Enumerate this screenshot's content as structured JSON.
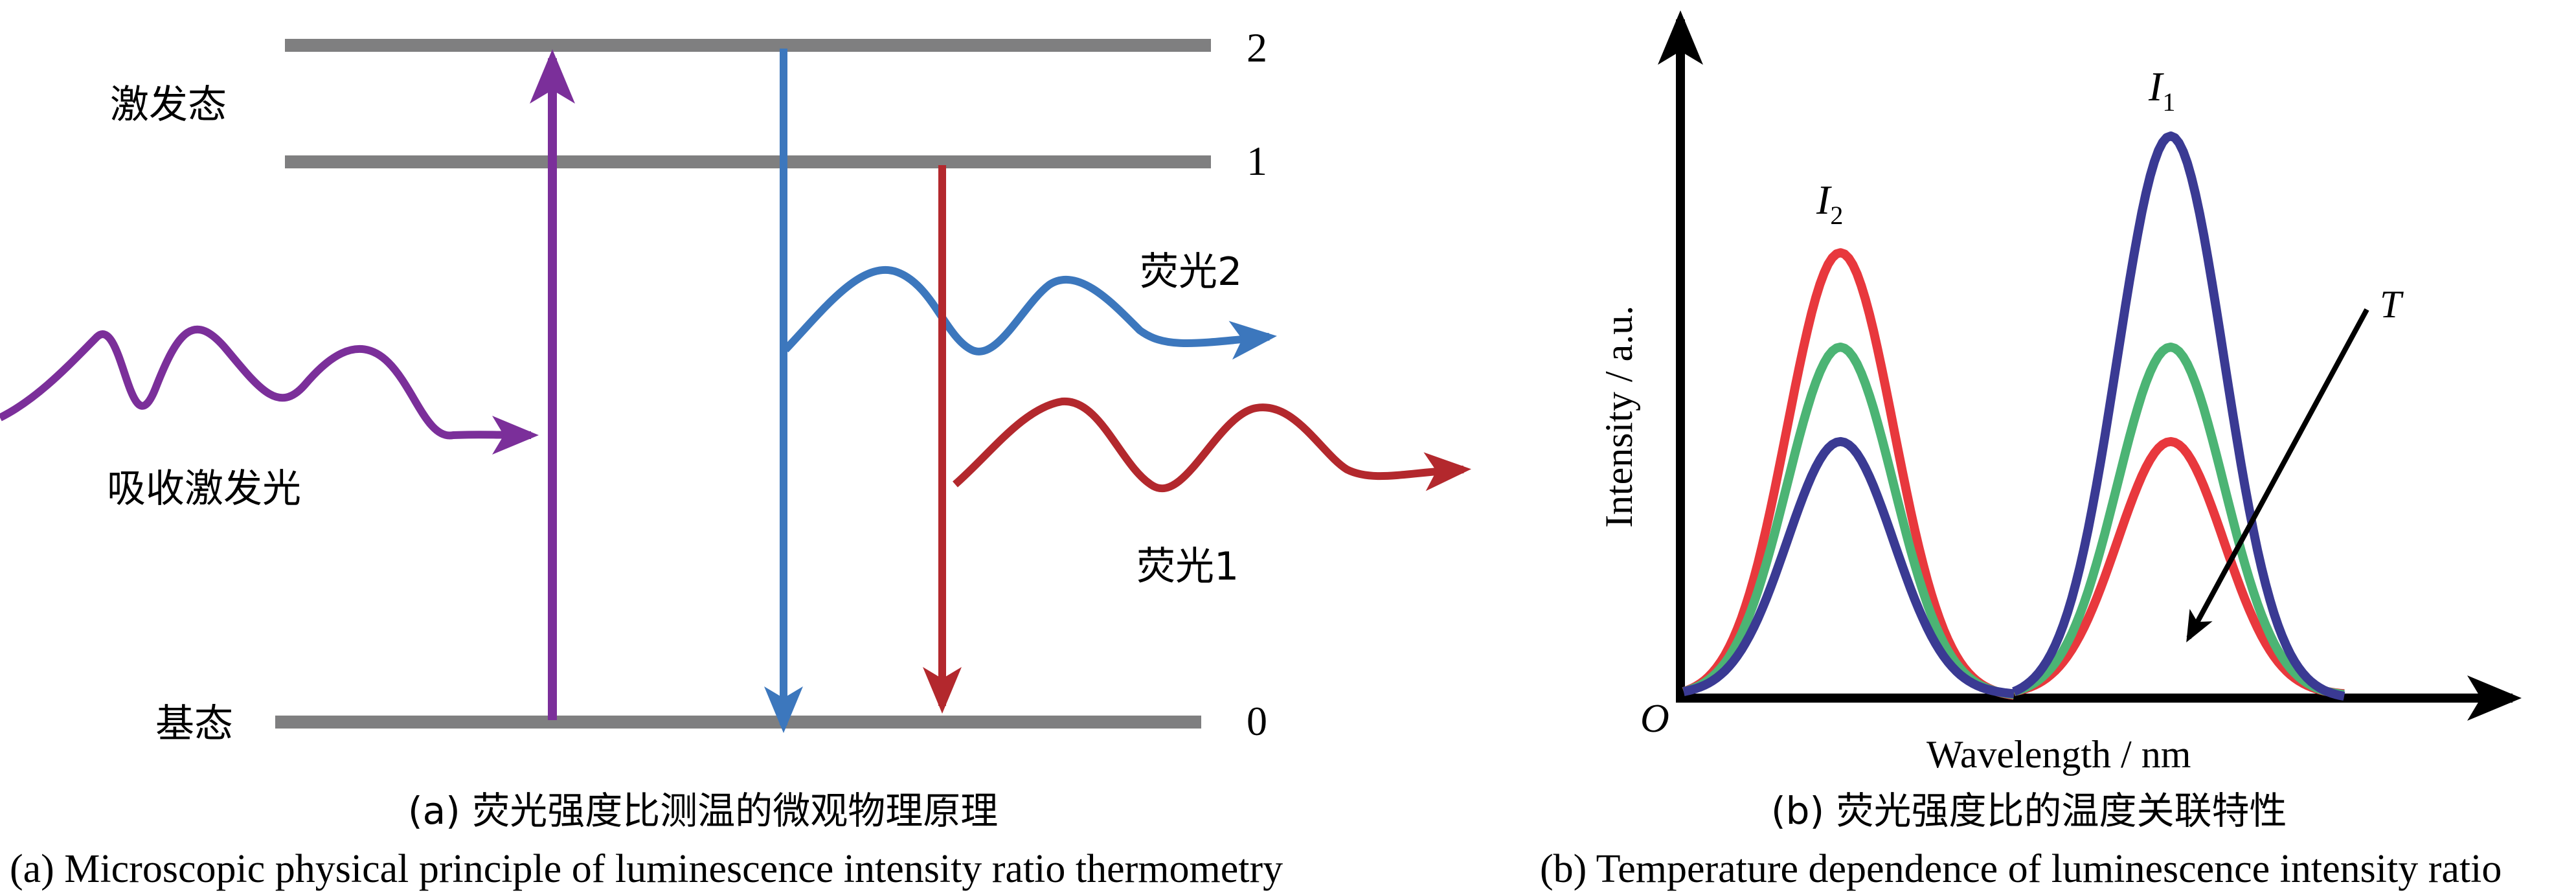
{
  "panel_a": {
    "level_labels": {
      "level2": "2",
      "level1": "1",
      "level0": "0"
    },
    "excited_state_label": "激发态",
    "ground_state_label": "基态",
    "absorption_label": "吸收激发光",
    "fluorescence2_label": "荧光2",
    "fluorescence1_label": "荧光1",
    "caption_cn": "(a) 荧光强度比测温的微观物理原理",
    "caption_en": "(a) Microscopic physical principle of luminescence intensity ratio thermometry",
    "colors": {
      "level": "#7f7f80",
      "absorption": "#7b2f9a",
      "fluorescence2": "#3c77bd",
      "fluorescence1": "#b3282d"
    }
  },
  "panel_b": {
    "peak_label_1_main": "I",
    "peak_label_1_sub": "1",
    "peak_label_2_main": "I",
    "peak_label_2_sub": "2",
    "trend_label": "T",
    "origin_label": "O",
    "xlabel": "Wavelength / nm",
    "ylabel": "Intensity / a.u.",
    "caption_cn": "(b) 荧光强度比的温度关联特性",
    "caption_en": "(b) Temperature dependence of luminescence intensity ratio",
    "colors": {
      "red": "#e8383d",
      "green": "#4cb474",
      "blue": "#3a3a93",
      "axis": "#000000"
    }
  },
  "chart_data": {
    "type": "line",
    "xlabel": "Wavelength / nm",
    "ylabel": "Intensity / a.u.",
    "series": [
      {
        "color": "#e8383d",
        "peak_I2": 0.79,
        "peak_I1": 0.45
      },
      {
        "color": "#4cb474",
        "peak_I2": 0.62,
        "peak_I1": 0.62
      },
      {
        "color": "#3a3a93",
        "peak_I2": 0.45,
        "peak_I1": 1.0
      }
    ]
  }
}
